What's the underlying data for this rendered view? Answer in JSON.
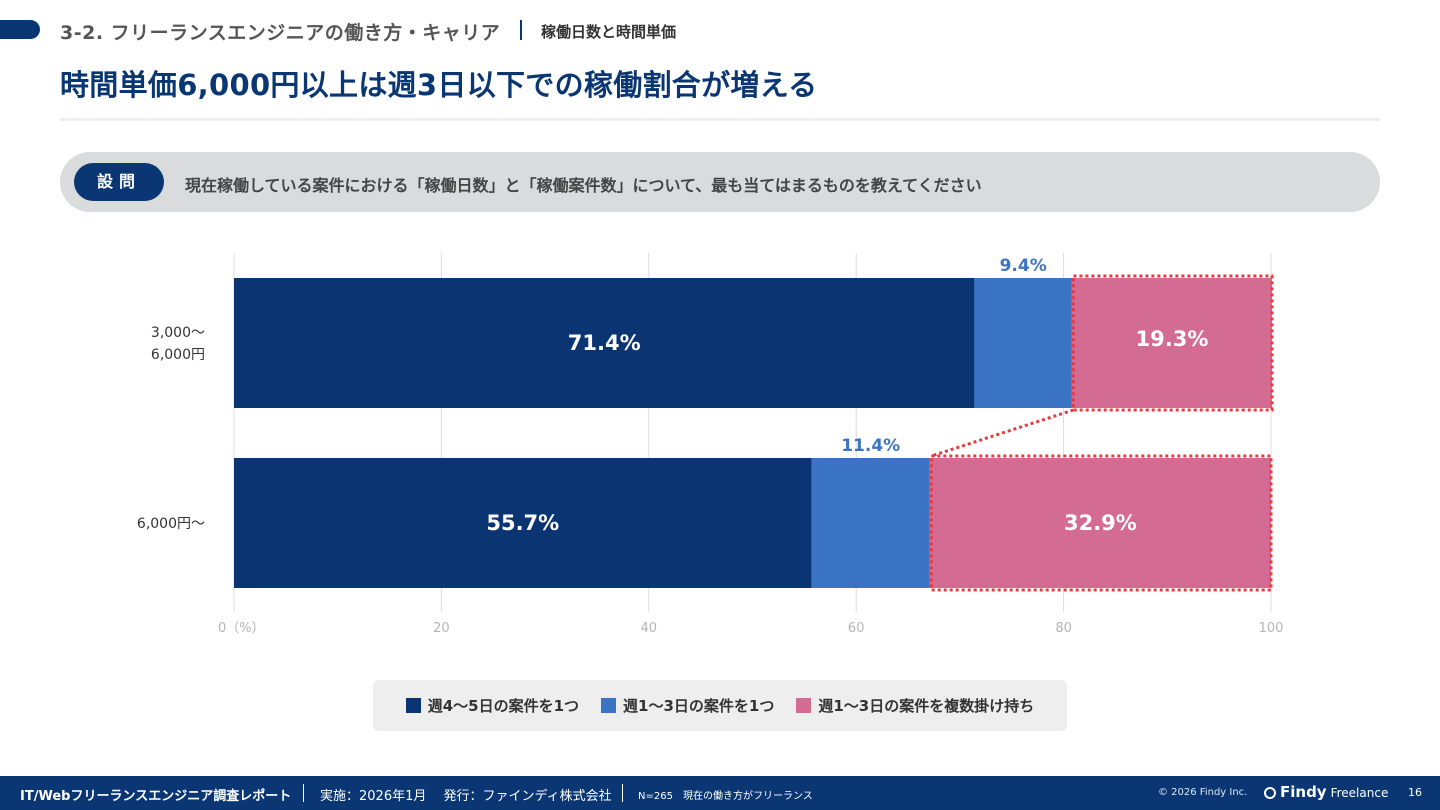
{
  "header": {
    "section_title": "3-2. フリーランスエンジニアの働き方・キャリア",
    "section_sub": "稼働日数と時間単価",
    "main_title": "時間単価6,000円以上は週3日以下での稼働割合が増える"
  },
  "question": {
    "badge": "設問",
    "text": "現在稼働している案件における「稼働日数」と「稼働案件数」について、最も当てはまるものを教えてください"
  },
  "chart_data": {
    "type": "bar",
    "orientation": "horizontal",
    "stacked": true,
    "categories": [
      [
        "3,000～",
        "6,000円"
      ],
      [
        "6,000円～"
      ]
    ],
    "series": [
      {
        "name": "週4～5日の案件を1つ",
        "values": [
          71.4,
          55.7
        ],
        "color": "#0a3472"
      },
      {
        "name": "週1～3日の案件を1つ",
        "values": [
          9.4,
          11.4
        ],
        "color": "#3b74c4"
      },
      {
        "name": "週1～3日の案件を複数掛け持ち",
        "values": [
          19.3,
          32.9
        ],
        "color": "#d46b92"
      }
    ],
    "data_labels": [
      [
        "71.4%",
        "55.7%"
      ],
      [
        "9.4%",
        "11.4%"
      ],
      [
        "19.3%",
        "32.9%"
      ]
    ],
    "xlim": [
      0,
      100
    ],
    "xticks": [
      0,
      20,
      40,
      60,
      80,
      100
    ],
    "xtick_labels": [
      "0（%）",
      "20",
      "40",
      "60",
      "80",
      "100"
    ],
    "grid": true,
    "legend_position": "bottom",
    "highlight_series": "週1～3日の案件を複数掛け持ち",
    "highlight_color": "#e8393f"
  },
  "footer": {
    "report": "IT/Webフリーランスエンジニア調査レポート",
    "implementation": "実施：2026年1月　 発行：ファインディ株式会社",
    "note": "N=265　現在の働き方がフリーランス",
    "copyright": "© 2026 Findy Inc.",
    "brand": "Findy",
    "brand_sub": "Freelance",
    "page": "16"
  }
}
